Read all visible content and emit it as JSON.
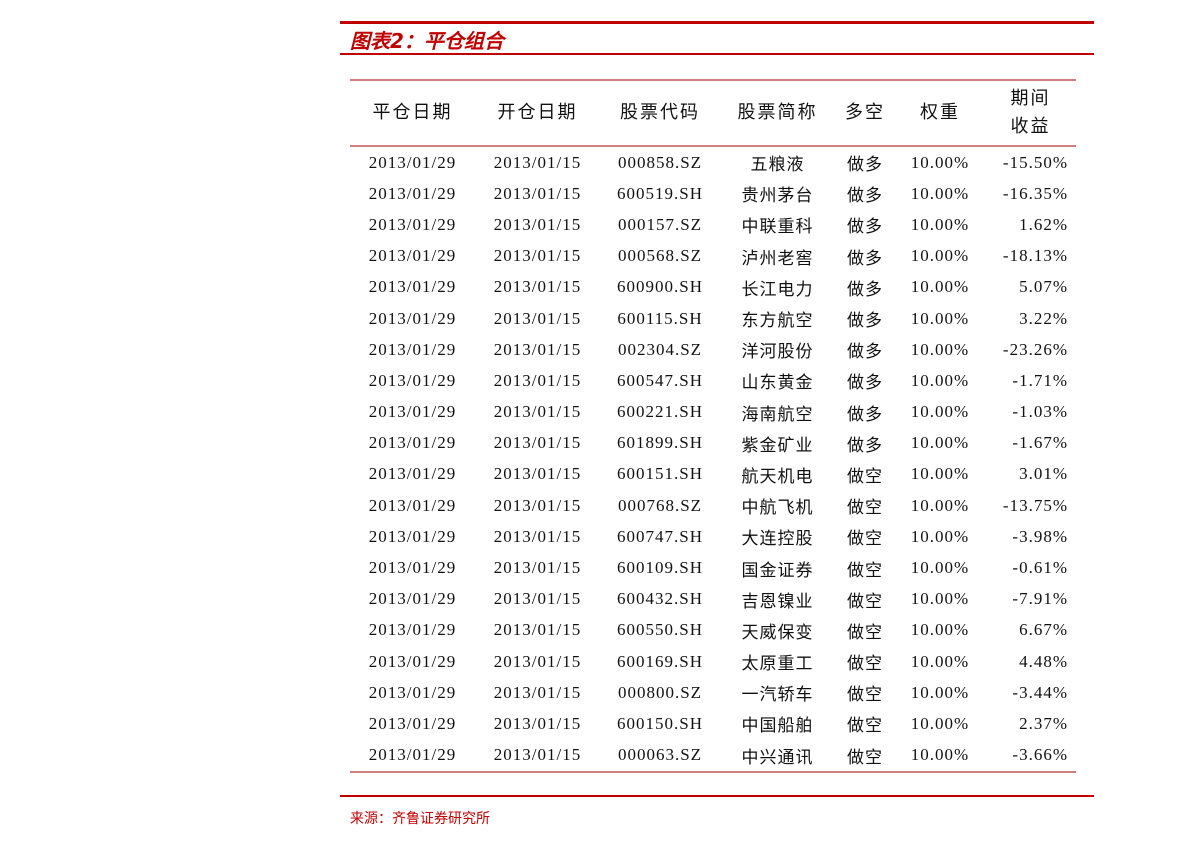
{
  "title": "图表2：平仓组合",
  "columns": [
    "平仓日期",
    "开仓日期",
    "股票代码",
    "股票简称",
    "多空",
    "权重",
    "期间收益"
  ],
  "rows": [
    [
      "2013/01/29",
      "2013/01/15",
      "000858.SZ",
      "五粮液",
      "做多",
      "10.00%",
      "-15.50%"
    ],
    [
      "2013/01/29",
      "2013/01/15",
      "600519.SH",
      "贵州茅台",
      "做多",
      "10.00%",
      "-16.35%"
    ],
    [
      "2013/01/29",
      "2013/01/15",
      "000157.SZ",
      "中联重科",
      "做多",
      "10.00%",
      "1.62%"
    ],
    [
      "2013/01/29",
      "2013/01/15",
      "000568.SZ",
      "泸州老窖",
      "做多",
      "10.00%",
      "-18.13%"
    ],
    [
      "2013/01/29",
      "2013/01/15",
      "600900.SH",
      "长江电力",
      "做多",
      "10.00%",
      "5.07%"
    ],
    [
      "2013/01/29",
      "2013/01/15",
      "600115.SH",
      "东方航空",
      "做多",
      "10.00%",
      "3.22%"
    ],
    [
      "2013/01/29",
      "2013/01/15",
      "002304.SZ",
      "洋河股份",
      "做多",
      "10.00%",
      "-23.26%"
    ],
    [
      "2013/01/29",
      "2013/01/15",
      "600547.SH",
      "山东黄金",
      "做多",
      "10.00%",
      "-1.71%"
    ],
    [
      "2013/01/29",
      "2013/01/15",
      "600221.SH",
      "海南航空",
      "做多",
      "10.00%",
      "-1.03%"
    ],
    [
      "2013/01/29",
      "2013/01/15",
      "601899.SH",
      "紫金矿业",
      "做多",
      "10.00%",
      "-1.67%"
    ],
    [
      "2013/01/29",
      "2013/01/15",
      "600151.SH",
      "航天机电",
      "做空",
      "10.00%",
      "3.01%"
    ],
    [
      "2013/01/29",
      "2013/01/15",
      "000768.SZ",
      "中航飞机",
      "做空",
      "10.00%",
      "-13.75%"
    ],
    [
      "2013/01/29",
      "2013/01/15",
      "600747.SH",
      "大连控股",
      "做空",
      "10.00%",
      "-3.98%"
    ],
    [
      "2013/01/29",
      "2013/01/15",
      "600109.SH",
      "国金证券",
      "做空",
      "10.00%",
      "-0.61%"
    ],
    [
      "2013/01/29",
      "2013/01/15",
      "600432.SH",
      "吉恩镍业",
      "做空",
      "10.00%",
      "-7.91%"
    ],
    [
      "2013/01/29",
      "2013/01/15",
      "600550.SH",
      "天威保变",
      "做空",
      "10.00%",
      "6.67%"
    ],
    [
      "2013/01/29",
      "2013/01/15",
      "600169.SH",
      "太原重工",
      "做空",
      "10.00%",
      "4.48%"
    ],
    [
      "2013/01/29",
      "2013/01/15",
      "000800.SZ",
      "一汽轿车",
      "做空",
      "10.00%",
      "-3.44%"
    ],
    [
      "2013/01/29",
      "2013/01/15",
      "600150.SH",
      "中国船舶",
      "做空",
      "10.00%",
      "2.37%"
    ],
    [
      "2013/01/29",
      "2013/01/15",
      "000063.SZ",
      "中兴通讯",
      "做空",
      "10.00%",
      "-3.66%"
    ]
  ],
  "source": "来源：齐鲁证券研究所",
  "colors": {
    "accent": "#c00000",
    "rule": "#d08080"
  }
}
